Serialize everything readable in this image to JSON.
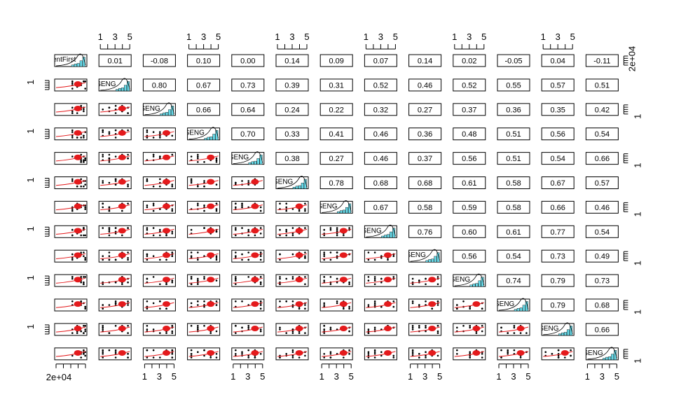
{
  "chart_data": {
    "type": "scatter-matrix",
    "variables": [
      "entFirst",
      "SENG",
      "SENG",
      "SENG",
      "SENG",
      "SENG",
      "SENG",
      "SENG",
      "SENG",
      "SENG",
      "SENG",
      "SENG",
      "SENG"
    ],
    "top_ticks": [
      "1",
      "3",
      "5"
    ],
    "bottom_ticks": [
      "1",
      "3",
      "5"
    ],
    "left_bottom_label": "2e+04",
    "right_top_label": "2e+04",
    "left_tick_label": "1",
    "right_tick_label": "1",
    "correlations": [
      [
        "",
        "0.01",
        "-0.08",
        "0.10",
        "0.00",
        "0.14",
        "0.09",
        "0.07",
        "0.14",
        "0.02",
        "-0.05",
        "0.04",
        "-0.11"
      ],
      [
        "",
        "",
        "0.80",
        "0.67",
        "0.73",
        "0.39",
        "0.31",
        "0.52",
        "0.46",
        "0.52",
        "0.55",
        "0.57",
        "0.51"
      ],
      [
        "",
        "",
        "",
        "0.66",
        "0.64",
        "0.24",
        "0.22",
        "0.32",
        "0.27",
        "0.37",
        "0.36",
        "0.35",
        "0.42"
      ],
      [
        "",
        "",
        "",
        "",
        "0.70",
        "0.33",
        "0.41",
        "0.46",
        "0.36",
        "0.48",
        "0.51",
        "0.56",
        "0.54"
      ],
      [
        "",
        "",
        "",
        "",
        "",
        "0.38",
        "0.27",
        "0.46",
        "0.37",
        "0.56",
        "0.51",
        "0.54",
        "0.66"
      ],
      [
        "",
        "",
        "",
        "",
        "",
        "",
        "0.78",
        "0.68",
        "0.68",
        "0.61",
        "0.58",
        "0.67",
        "0.57"
      ],
      [
        "",
        "",
        "",
        "",
        "",
        "",
        "",
        "0.67",
        "0.58",
        "0.59",
        "0.58",
        "0.66",
        "0.46"
      ],
      [
        "",
        "",
        "",
        "",
        "",
        "",
        "",
        "",
        "0.76",
        "0.60",
        "0.61",
        "0.77",
        "0.54"
      ],
      [
        "",
        "",
        "",
        "",
        "",
        "",
        "",
        "",
        "",
        "0.56",
        "0.54",
        "0.73",
        "0.49"
      ],
      [
        "",
        "",
        "",
        "",
        "",
        "",
        "",
        "",
        "",
        "",
        "0.74",
        "0.79",
        "0.73"
      ],
      [
        "",
        "",
        "",
        "",
        "",
        "",
        "",
        "",
        "",
        "",
        "",
        "0.79",
        "0.68"
      ],
      [
        "",
        "",
        "",
        "",
        "",
        "",
        "",
        "",
        "",
        "",
        "",
        "",
        "0.66"
      ],
      [
        "",
        "",
        "",
        "",
        "",
        "",
        "",
        "",
        "",
        "",
        "",
        "",
        ""
      ]
    ],
    "colors": {
      "points": "#000000",
      "fit": "#e41a1c",
      "hist": "#66d9e8",
      "frame": "#000000"
    }
  }
}
